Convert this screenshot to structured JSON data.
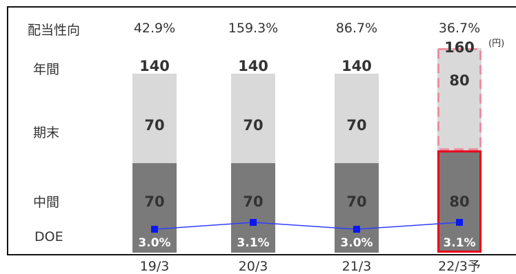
{
  "row_labels": {
    "payout": "配当性向",
    "annual": "年間",
    "year_end": "期末",
    "interim": "中間",
    "doe": "DOE"
  },
  "unit": "(円)",
  "colors": {
    "interim": "#7a7a7a",
    "year_end": "#d9d9d9",
    "forecast_border": "#e8001a",
    "forecast_dash": "#ee8ea2",
    "doe_line": "#2f3dff",
    "doe_marker": "#0a18f0"
  },
  "chart_data": {
    "type": "bar",
    "stacked": true,
    "categories": [
      "19/3",
      "20/3",
      "21/3",
      "22/3予"
    ],
    "series": [
      {
        "name": "中間",
        "values": [
          70,
          70,
          70,
          80
        ]
      },
      {
        "name": "期末",
        "values": [
          70,
          70,
          70,
          80
        ]
      }
    ],
    "annual_total": [
      140,
      140,
      140,
      160
    ],
    "annual_total_labels": [
      "140",
      "140",
      "140",
      "160"
    ],
    "payout_ratio": [
      "42.9%",
      "159.3%",
      "86.7%",
      "36.7%"
    ],
    "doe": [
      3.0,
      3.1,
      3.0,
      3.1
    ],
    "doe_labels": [
      "3.0%",
      "3.1%",
      "3.0%",
      "3.1%"
    ],
    "forecast_index": 3,
    "ylim": [
      0,
      160
    ]
  }
}
